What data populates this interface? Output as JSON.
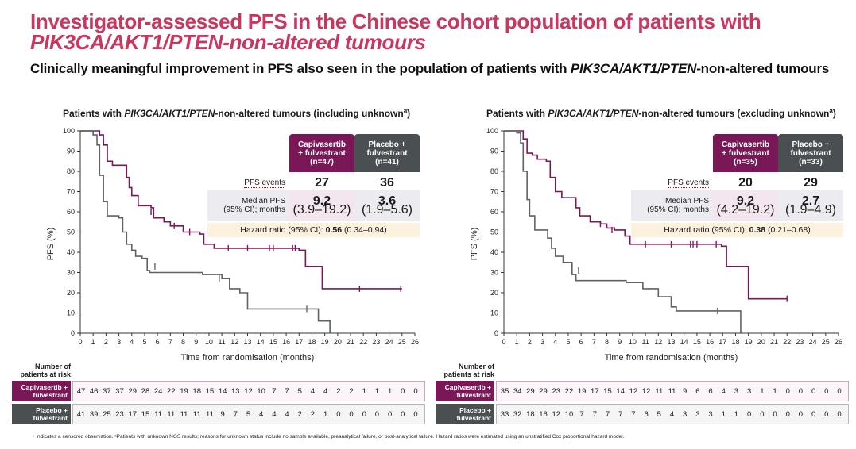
{
  "header": {
    "title_line1": "Investigator-assessed PFS in the Chinese cohort population of patients with",
    "title_line2": "PIK3CA/AKT1/PTEN-non-altered tumours",
    "subtitle_prefix": "Clinically meaningful improvement in PFS also seen in the population of patients with ",
    "subtitle_italic": "PIK3CA/AKT1/PTEN",
    "subtitle_suffix": "-non-altered tumours"
  },
  "colors": {
    "capivasertib": "#7a1857",
    "placebo": "#5d6366",
    "title": "#c9375f"
  },
  "common": {
    "ylabel": "PFS (%)",
    "xlabel": "Time from randomisation (months)",
    "yticks": [
      0,
      10,
      20,
      30,
      40,
      50,
      60,
      70,
      80,
      90,
      100
    ],
    "xticks": [
      0,
      1,
      2,
      3,
      4,
      5,
      6,
      7,
      8,
      9,
      10,
      11,
      12,
      13,
      14,
      15,
      16,
      17,
      18,
      19,
      20,
      21,
      22,
      23,
      24,
      25,
      26
    ],
    "risk_header": "Number of patients at risk",
    "pfs_events_label": "PFS events",
    "median_label_1": "Median PFS",
    "median_label_2": "(95% CI); months",
    "cap_arm_1": "Capivasertib",
    "cap_arm_2": "+ fulvestrant",
    "plc_arm_1": "Placebo +",
    "plc_arm_2": "fulvestrant",
    "risk_cap_1": "Capivasertib +",
    "risk_cap_2": "fulvestrant",
    "risk_plc_1": "Placebo +",
    "risk_plc_2": "fulvestrant"
  },
  "chart_data": [
    {
      "type": "line",
      "title_pre": "Patients with ",
      "title_italic": "PIK3CA/AKT1/PTEN",
      "title_post": "-non-altered tumours (including unknown",
      "title_sup": "a",
      "title_end": ")",
      "xlabel": "Time from randomisation (months)",
      "ylabel": "PFS (%)",
      "xlim": [
        0,
        26
      ],
      "ylim": [
        0,
        100
      ],
      "cap_n": "(n=47)",
      "plc_n": "(n=41)",
      "cap_events": "27",
      "plc_events": "36",
      "cap_median": "9.2",
      "cap_ci": "(3.9–19.2)",
      "plc_median": "3.6",
      "plc_ci": "(1.9–5.6)",
      "hr_label": "Hazard ratio (95% CI): ",
      "hr_value": "0.56",
      "hr_ci": " (0.34–0.94)",
      "series": [
        {
          "name": "Capivasertib + fulvestrant",
          "steps": [
            [
              0,
              100
            ],
            [
              1.3,
              100
            ],
            [
              1.5,
              98
            ],
            [
              1.8,
              93
            ],
            [
              2.1,
              85
            ],
            [
              2.5,
              83
            ],
            [
              3.6,
              77
            ],
            [
              3.8,
              72
            ],
            [
              4,
              68
            ],
            [
              4.5,
              63
            ],
            [
              5.5,
              62
            ],
            [
              5.7,
              57
            ],
            [
              6.5,
              55
            ],
            [
              7,
              53
            ],
            [
              8,
              50
            ],
            [
              9.3,
              49
            ],
            [
              9.6,
              44
            ],
            [
              10.4,
              42
            ],
            [
              17,
              41
            ],
            [
              17.5,
              33
            ],
            [
              18.8,
              22
            ],
            [
              25,
              22
            ]
          ],
          "censors": [
            [
              5.5,
              60
            ],
            [
              7.3,
              53
            ],
            [
              8.5,
              50
            ],
            [
              11.5,
              42
            ],
            [
              13,
              42
            ],
            [
              14.7,
              42
            ],
            [
              15,
              42
            ],
            [
              16.5,
              42
            ],
            [
              16.7,
              42
            ],
            [
              21.7,
              22
            ],
            [
              24.9,
              22
            ]
          ]
        },
        {
          "name": "Placebo + fulvestrant",
          "steps": [
            [
              0,
              100
            ],
            [
              1,
              98
            ],
            [
              1.3,
              93
            ],
            [
              1.5,
              78
            ],
            [
              1.8,
              65
            ],
            [
              2.1,
              58
            ],
            [
              3,
              57
            ],
            [
              3.3,
              50
            ],
            [
              3.6,
              44
            ],
            [
              4,
              41
            ],
            [
              4.3,
              38
            ],
            [
              4.8,
              37
            ],
            [
              5.2,
              31
            ],
            [
              5.4,
              30
            ],
            [
              9.5,
              29
            ],
            [
              11,
              27
            ],
            [
              11.6,
              22
            ],
            [
              12.4,
              20
            ],
            [
              13,
              12
            ],
            [
              16.5,
              12
            ],
            [
              18.5,
              6
            ],
            [
              19.4,
              0
            ]
          ],
          "censors": [
            [
              5.8,
              33
            ],
            [
              10.8,
              27
            ],
            [
              17.6,
              12
            ]
          ]
        }
      ],
      "risk_cap": [
        47,
        46,
        37,
        37,
        29,
        28,
        24,
        22,
        19,
        18,
        15,
        14,
        13,
        12,
        10,
        7,
        7,
        5,
        4,
        4,
        2,
        2,
        1,
        1,
        1,
        0,
        0
      ],
      "risk_plc": [
        41,
        39,
        25,
        23,
        17,
        15,
        11,
        11,
        11,
        11,
        11,
        9,
        7,
        5,
        4,
        4,
        4,
        2,
        2,
        1,
        0,
        0,
        0,
        0,
        0,
        0,
        0
      ]
    },
    {
      "type": "line",
      "title_pre": "Patients with ",
      "title_italic": "PIK3CA/AKT1/PTEN",
      "title_post": "-non-altered tumours (excluding unknown",
      "title_sup": "a",
      "title_end": ")",
      "xlabel": "Time from randomisation (months)",
      "ylabel": "PFS (%)",
      "xlim": [
        0,
        26
      ],
      "ylim": [
        0,
        100
      ],
      "cap_n": "(n=35)",
      "plc_n": "(n=33)",
      "cap_events": "20",
      "plc_events": "29",
      "cap_median": "9.2",
      "cap_ci": "(4.2–19.2)",
      "plc_median": "2.7",
      "plc_ci": "(1.9–4.9)",
      "hr_label": "Hazard ratio (95% CI): ",
      "hr_value": "0.38",
      "hr_ci": " (0.21–0.68)",
      "series": [
        {
          "name": "Capivasertib + fulvestrant",
          "steps": [
            [
              0,
              100
            ],
            [
              1.3,
              100
            ],
            [
              1.5,
              96
            ],
            [
              1.8,
              89
            ],
            [
              2.2,
              88
            ],
            [
              2.6,
              86
            ],
            [
              3.3,
              85
            ],
            [
              3.6,
              77
            ],
            [
              4,
              70
            ],
            [
              4.5,
              67
            ],
            [
              5.6,
              62
            ],
            [
              5.9,
              58
            ],
            [
              6.7,
              55
            ],
            [
              7.5,
              54
            ],
            [
              8,
              52
            ],
            [
              8.6,
              51
            ],
            [
              9.4,
              48
            ],
            [
              9.8,
              44
            ],
            [
              16.9,
              43
            ],
            [
              17.3,
              33
            ],
            [
              19,
              17
            ],
            [
              22,
              17
            ]
          ],
          "censors": [
            [
              7.5,
              54
            ],
            [
              8.4,
              51
            ],
            [
              11,
              44
            ],
            [
              13,
              44
            ],
            [
              14.5,
              44
            ],
            [
              14.7,
              44
            ],
            [
              15,
              44
            ],
            [
              16.5,
              44
            ],
            [
              22,
              17
            ]
          ]
        },
        {
          "name": "Placebo + fulvestrant",
          "steps": [
            [
              0,
              100
            ],
            [
              1,
              99
            ],
            [
              1.3,
              94
            ],
            [
              1.5,
              80
            ],
            [
              1.8,
              66
            ],
            [
              2,
              58
            ],
            [
              2.4,
              51
            ],
            [
              3.4,
              47
            ],
            [
              3.7,
              42
            ],
            [
              4,
              38
            ],
            [
              4.6,
              35
            ],
            [
              5.3,
              29
            ],
            [
              5.6,
              26
            ],
            [
              9.5,
              25
            ],
            [
              10.8,
              22
            ],
            [
              12,
              18
            ],
            [
              13,
              13
            ],
            [
              13.4,
              11
            ],
            [
              18.4,
              0
            ]
          ],
          "censors": [
            [
              5.8,
              31
            ],
            [
              16.6,
              11
            ]
          ]
        }
      ],
      "risk_cap": [
        35,
        34,
        29,
        29,
        23,
        22,
        19,
        17,
        15,
        14,
        12,
        12,
        11,
        11,
        9,
        6,
        6,
        4,
        3,
        3,
        1,
        1,
        0,
        0,
        0,
        0,
        0
      ],
      "risk_plc": [
        33,
        32,
        18,
        16,
        12,
        10,
        7,
        7,
        7,
        7,
        7,
        6,
        5,
        4,
        3,
        3,
        3,
        1,
        1,
        0,
        0,
        0,
        0,
        0,
        0,
        0,
        0
      ]
    }
  ],
  "footnote": "+ indicates a censored observation. ᵃPatients with unknown NGS results; reasons for unknown status include no sample available, preanalytical failure, or post-analytical failure. Hazard ratios were estimated using an unstratified Cox proportional hazard model."
}
